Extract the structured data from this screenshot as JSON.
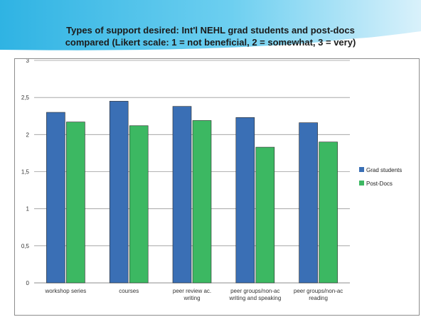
{
  "slide": {
    "title_line1": "Types of support desired: Int'l NEHL grad students and post-docs",
    "title_line2": "compared (Likert scale: 1 = not beneficial, 2 = somewhat, 3 = very)"
  },
  "colors": {
    "header_light": "#d9f1fb",
    "header_mid": "#6dcff0",
    "header_dark": "#2fb3e3",
    "grad": "#3a6fb5",
    "postdoc": "#3cb862",
    "grid": "#9a9a9a"
  },
  "chart_data": {
    "type": "bar",
    "categories": [
      [
        "workshop series"
      ],
      [
        "courses"
      ],
      [
        "peer review ac.",
        "writing"
      ],
      [
        "peer groups/non-ac",
        "writing and speaking"
      ],
      [
        "peer groups/non-ac",
        "reading"
      ]
    ],
    "series": [
      {
        "name": "Grad students",
        "values": [
          2.3,
          2.45,
          2.38,
          2.23,
          2.16
        ]
      },
      {
        "name": "Post-Docs",
        "values": [
          2.17,
          2.12,
          2.19,
          1.83,
          1.9
        ]
      }
    ],
    "y_ticks": [
      "0",
      "0,5",
      "1",
      "1,5",
      "2",
      "2,5",
      "3"
    ],
    "ylim": [
      0,
      3
    ],
    "grid": true,
    "legend_position": "right"
  }
}
